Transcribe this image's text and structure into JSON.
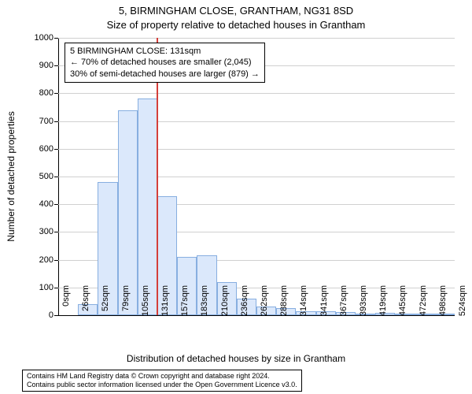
{
  "title_main": "5, BIRMINGHAM CLOSE, GRANTHAM, NG31 8SD",
  "title_sub": "Size of property relative to detached houses in Grantham",
  "y_axis_label": "Number of detached properties",
  "x_axis_label": "Distribution of detached houses by size in Grantham",
  "chart": {
    "type": "histogram",
    "background_color": "#ffffff",
    "grid_color": "#d0d0d0",
    "axis_color": "#000000",
    "bar_fill": "#dbe8fb",
    "bar_border": "#87aee0",
    "marker_color": "#d43f3a",
    "title_fontsize": 13,
    "label_fontsize": 12,
    "tick_fontsize": 11,
    "ylim": [
      0,
      1000
    ],
    "ytick_step": 100,
    "y_ticks": [
      0,
      100,
      200,
      300,
      400,
      500,
      600,
      700,
      800,
      900,
      1000
    ],
    "x_tick_labels": [
      "0sqm",
      "26sqm",
      "52sqm",
      "79sqm",
      "105sqm",
      "131sqm",
      "157sqm",
      "183sqm",
      "210sqm",
      "236sqm",
      "262sqm",
      "288sqm",
      "314sqm",
      "341sqm",
      "367sqm",
      "393sqm",
      "419sqm",
      "445sqm",
      "472sqm",
      "498sqm",
      "524sqm"
    ],
    "values": [
      0,
      40,
      480,
      740,
      780,
      430,
      210,
      215,
      120,
      60,
      30,
      25,
      15,
      15,
      10,
      5,
      8,
      5,
      5,
      3
    ],
    "marker_bin_index": 5,
    "bar_width_ratio": 1.0
  },
  "annotation": {
    "line1": "5 BIRMINGHAM CLOSE: 131sqm",
    "line2": "← 70% of detached houses are smaller (2,045)",
    "line3": "30% of semi-detached houses are larger (879) →"
  },
  "footer": {
    "line1": "Contains HM Land Registry data © Crown copyright and database right 2024.",
    "line2": "Contains public sector information licensed under the Open Government Licence v3.0."
  }
}
